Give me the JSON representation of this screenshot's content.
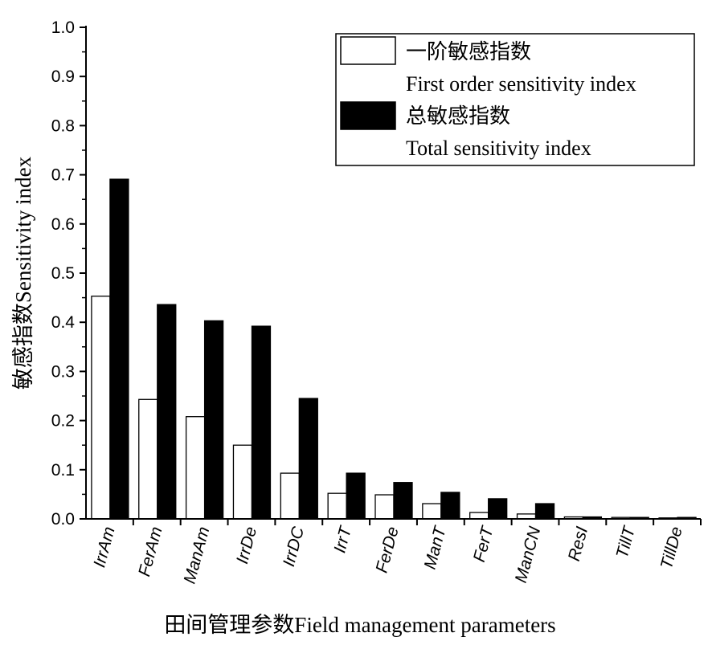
{
  "chart_data": {
    "type": "bar",
    "categories": [
      "IrrAm",
      "FerAm",
      "ManAm",
      "IrrDe",
      "IrrDC",
      "IrrT",
      "FerDe",
      "ManT",
      "FerT",
      "ManCN",
      "ResI",
      "TillT",
      "TillDe"
    ],
    "series": [
      {
        "name": "一阶敏感指数 First order sensitivity index",
        "legend_line1": "一阶敏感指数",
        "legend_line2": "First order sensitivity index",
        "color": "#ffffff",
        "values": [
          0.453,
          0.243,
          0.208,
          0.15,
          0.093,
          0.052,
          0.049,
          0.031,
          0.013,
          0.01,
          0.004,
          0.003,
          0.002
        ]
      },
      {
        "name": "总敏感指数 Total sensitivity index",
        "legend_line1": "总敏感指数",
        "legend_line2": "Total sensitivity index",
        "color": "#000000",
        "values": [
          0.691,
          0.436,
          0.403,
          0.392,
          0.245,
          0.093,
          0.074,
          0.054,
          0.041,
          0.031,
          0.004,
          0.003,
          0.003
        ]
      }
    ],
    "xlabel": "田间管理参数Field management parameters",
    "ylabel": "敏感指数Sensitivity index",
    "ylim": [
      0,
      1.0
    ],
    "yticks": [
      "0.0",
      "0.1",
      "0.2",
      "0.3",
      "0.4",
      "0.5",
      "0.6",
      "0.7",
      "0.8",
      "0.9",
      "1.0"
    ],
    "legend_position": "top-right",
    "grid": false
  }
}
